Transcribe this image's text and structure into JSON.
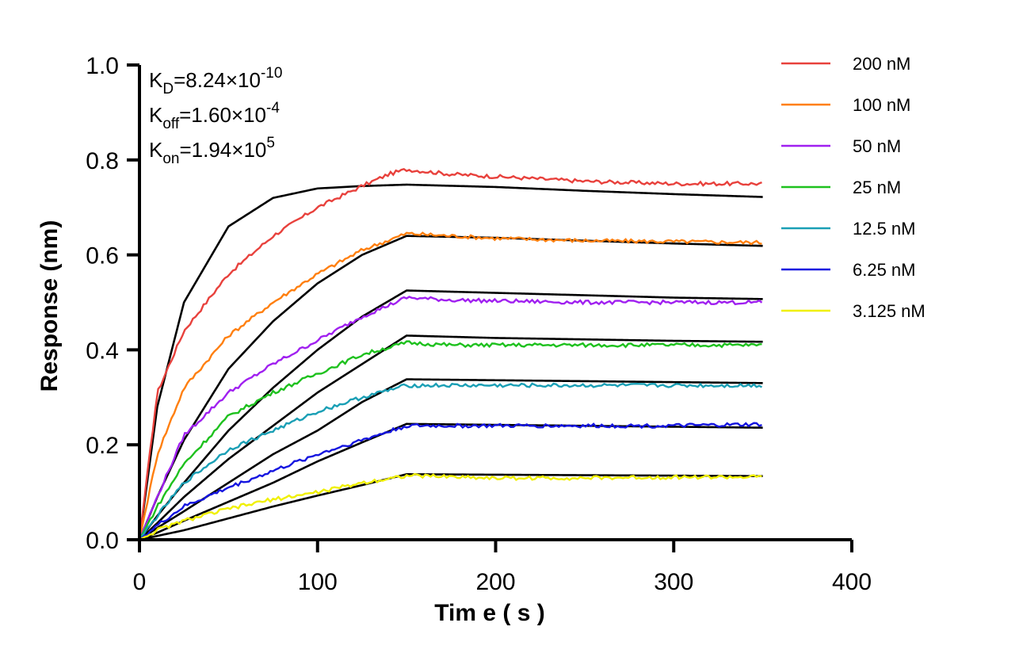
{
  "chart_data": {
    "type": "line",
    "xlabel": "Tim e ( s )",
    "ylabel": "Response (nm)",
    "xlim": [
      0,
      400
    ],
    "ylim": [
      0,
      1.0
    ],
    "x_ticks": [
      0,
      100,
      200,
      300,
      400
    ],
    "x_tick_labels": [
      "0",
      "100",
      "200",
      "300",
      "400"
    ],
    "y_ticks": [
      0,
      0.2,
      0.4,
      0.6,
      0.8,
      1.0
    ],
    "y_tick_labels": [
      "0.0",
      "0.2",
      "0.4",
      "0.6",
      "0.8",
      "1.0"
    ],
    "grid": false,
    "legend_position": "top-right",
    "kinetics": [
      {
        "sym": "K",
        "sub": "D",
        "mant": "=8.24×10",
        "exp": "-10"
      },
      {
        "sym": "K",
        "sub": "off",
        "mant": "=1.60×10",
        "exp": "-4"
      },
      {
        "sym": "K",
        "sub": "on",
        "mant": "=1.94×10",
        "exp": "5"
      }
    ],
    "association_end": 150,
    "dissociation_end": 350,
    "series": [
      {
        "name": "200 nM",
        "color": "#e8413c",
        "points": [
          [
            0,
            0
          ],
          [
            10,
            0.31
          ],
          [
            25,
            0.44
          ],
          [
            50,
            0.56
          ],
          [
            75,
            0.64
          ],
          [
            100,
            0.7
          ],
          [
            125,
            0.745
          ],
          [
            140,
            0.77
          ],
          [
            150,
            0.78
          ],
          [
            175,
            0.77
          ],
          [
            200,
            0.765
          ],
          [
            250,
            0.755
          ],
          [
            300,
            0.75
          ],
          [
            350,
            0.75
          ]
        ],
        "fit": [
          [
            0,
            0
          ],
          [
            10,
            0.28
          ],
          [
            25,
            0.5
          ],
          [
            50,
            0.66
          ],
          [
            75,
            0.72
          ],
          [
            100,
            0.74
          ],
          [
            125,
            0.745
          ],
          [
            150,
            0.748
          ],
          [
            200,
            0.743
          ],
          [
            250,
            0.735
          ],
          [
            300,
            0.728
          ],
          [
            350,
            0.722
          ]
        ]
      },
      {
        "name": "100 nM",
        "color": "#ff7f0e",
        "points": [
          [
            0,
            0
          ],
          [
            10,
            0.18
          ],
          [
            25,
            0.32
          ],
          [
            50,
            0.43
          ],
          [
            75,
            0.5
          ],
          [
            100,
            0.56
          ],
          [
            125,
            0.61
          ],
          [
            150,
            0.645
          ],
          [
            175,
            0.64
          ],
          [
            200,
            0.635
          ],
          [
            250,
            0.63
          ],
          [
            300,
            0.628
          ],
          [
            350,
            0.626
          ]
        ],
        "fit": [
          [
            0,
            0
          ],
          [
            10,
            0.09
          ],
          [
            25,
            0.21
          ],
          [
            50,
            0.36
          ],
          [
            75,
            0.46
          ],
          [
            100,
            0.54
          ],
          [
            125,
            0.6
          ],
          [
            150,
            0.64
          ],
          [
            200,
            0.636
          ],
          [
            250,
            0.63
          ],
          [
            300,
            0.624
          ],
          [
            350,
            0.619
          ]
        ]
      },
      {
        "name": "50 nM",
        "color": "#a020f0",
        "points": [
          [
            0,
            0
          ],
          [
            10,
            0.09
          ],
          [
            25,
            0.22
          ],
          [
            50,
            0.31
          ],
          [
            75,
            0.37
          ],
          [
            100,
            0.42
          ],
          [
            125,
            0.47
          ],
          [
            150,
            0.51
          ],
          [
            175,
            0.505
          ],
          [
            200,
            0.503
          ],
          [
            250,
            0.5
          ],
          [
            300,
            0.5
          ],
          [
            350,
            0.5
          ]
        ],
        "fit": [
          [
            0,
            0
          ],
          [
            10,
            0.05
          ],
          [
            25,
            0.12
          ],
          [
            50,
            0.23
          ],
          [
            75,
            0.32
          ],
          [
            100,
            0.4
          ],
          [
            125,
            0.47
          ],
          [
            150,
            0.525
          ],
          [
            200,
            0.52
          ],
          [
            250,
            0.515
          ],
          [
            300,
            0.51
          ],
          [
            350,
            0.507
          ]
        ]
      },
      {
        "name": "25 nM",
        "color": "#1ec11e",
        "points": [
          [
            0,
            0
          ],
          [
            10,
            0.07
          ],
          [
            25,
            0.16
          ],
          [
            50,
            0.26
          ],
          [
            75,
            0.31
          ],
          [
            100,
            0.35
          ],
          [
            125,
            0.39
          ],
          [
            150,
            0.415
          ],
          [
            175,
            0.41
          ],
          [
            200,
            0.41
          ],
          [
            250,
            0.41
          ],
          [
            300,
            0.41
          ],
          [
            350,
            0.41
          ]
        ],
        "fit": [
          [
            0,
            0
          ],
          [
            10,
            0.035
          ],
          [
            25,
            0.09
          ],
          [
            50,
            0.17
          ],
          [
            75,
            0.24
          ],
          [
            100,
            0.31
          ],
          [
            125,
            0.37
          ],
          [
            150,
            0.43
          ],
          [
            200,
            0.425
          ],
          [
            250,
            0.422
          ],
          [
            300,
            0.419
          ],
          [
            350,
            0.417
          ]
        ]
      },
      {
        "name": "12.5 nM",
        "color": "#1a9fb5",
        "points": [
          [
            0,
            0
          ],
          [
            10,
            0.05
          ],
          [
            25,
            0.12
          ],
          [
            50,
            0.19
          ],
          [
            75,
            0.23
          ],
          [
            100,
            0.27
          ],
          [
            125,
            0.3
          ],
          [
            150,
            0.325
          ],
          [
            175,
            0.325
          ],
          [
            200,
            0.325
          ],
          [
            250,
            0.325
          ],
          [
            300,
            0.325
          ],
          [
            350,
            0.325
          ]
        ],
        "fit": [
          [
            0,
            0
          ],
          [
            10,
            0.025
          ],
          [
            25,
            0.06
          ],
          [
            50,
            0.12
          ],
          [
            75,
            0.18
          ],
          [
            100,
            0.23
          ],
          [
            125,
            0.29
          ],
          [
            150,
            0.338
          ],
          [
            200,
            0.336
          ],
          [
            250,
            0.334
          ],
          [
            300,
            0.332
          ],
          [
            350,
            0.33
          ]
        ]
      },
      {
        "name": "6.25 nM",
        "color": "#1515e0",
        "points": [
          [
            0,
            0
          ],
          [
            10,
            0.03
          ],
          [
            25,
            0.07
          ],
          [
            50,
            0.11
          ],
          [
            75,
            0.145
          ],
          [
            100,
            0.18
          ],
          [
            125,
            0.21
          ],
          [
            150,
            0.24
          ],
          [
            175,
            0.24
          ],
          [
            200,
            0.24
          ],
          [
            250,
            0.24
          ],
          [
            300,
            0.24
          ],
          [
            350,
            0.243
          ]
        ],
        "fit": [
          [
            0,
            0
          ],
          [
            10,
            0.015
          ],
          [
            25,
            0.04
          ],
          [
            50,
            0.08
          ],
          [
            75,
            0.12
          ],
          [
            100,
            0.165
          ],
          [
            125,
            0.205
          ],
          [
            150,
            0.244
          ],
          [
            200,
            0.242
          ],
          [
            250,
            0.24
          ],
          [
            300,
            0.238
          ],
          [
            350,
            0.236
          ]
        ]
      },
      {
        "name": "3.125 nM",
        "color": "#f0f000",
        "points": [
          [
            0,
            0
          ],
          [
            10,
            0.02
          ],
          [
            25,
            0.04
          ],
          [
            50,
            0.065
          ],
          [
            75,
            0.085
          ],
          [
            100,
            0.1
          ],
          [
            125,
            0.12
          ],
          [
            150,
            0.135
          ],
          [
            175,
            0.133
          ],
          [
            200,
            0.13
          ],
          [
            250,
            0.13
          ],
          [
            300,
            0.132
          ],
          [
            350,
            0.132
          ]
        ],
        "fit": [
          [
            0,
            0
          ],
          [
            10,
            0.008
          ],
          [
            25,
            0.02
          ],
          [
            50,
            0.045
          ],
          [
            75,
            0.07
          ],
          [
            100,
            0.093
          ],
          [
            125,
            0.115
          ],
          [
            150,
            0.138
          ],
          [
            200,
            0.137
          ],
          [
            250,
            0.136
          ],
          [
            300,
            0.135
          ],
          [
            350,
            0.134
          ]
        ]
      }
    ]
  }
}
